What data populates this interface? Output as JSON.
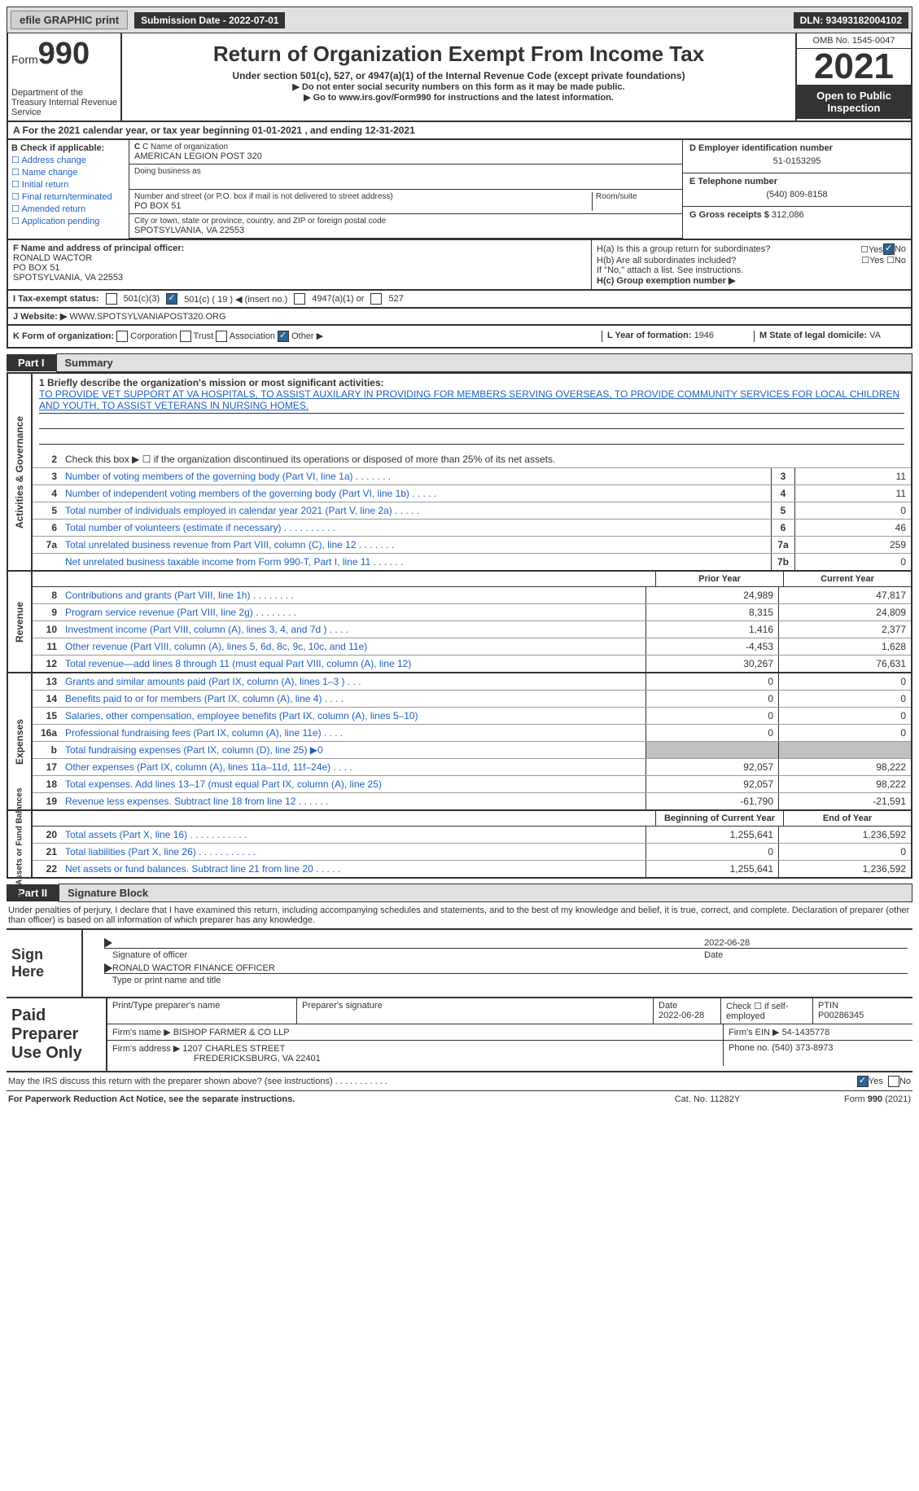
{
  "topbar": {
    "efile": "efile GRAPHIC print",
    "submission": "Submission Date - 2022-07-01",
    "dln": "DLN: 93493182004102"
  },
  "header": {
    "form_label": "Form",
    "form_num": "990",
    "title": "Return of Organization Exempt From Income Tax",
    "sub1": "Under section 501(c), 527, or 4947(a)(1) of the Internal Revenue Code (except private foundations)",
    "sub2": "▶ Do not enter social security numbers on this form as it may be made public.",
    "sub3": "▶ Go to www.irs.gov/Form990 for instructions and the latest information.",
    "dept": "Department of the Treasury Internal Revenue Service",
    "omb": "OMB No. 1545-0047",
    "year": "2021",
    "inspect": "Open to Public Inspection"
  },
  "row_a": "A For the 2021 calendar year, or tax year beginning 01-01-2021    , and ending 12-31-2021",
  "box_b": {
    "label": "B Check if applicable:",
    "opts": [
      "Address change",
      "Name change",
      "Initial return",
      "Final return/terminated",
      "Amended return",
      "Application pending"
    ]
  },
  "box_c": {
    "name_label": "C Name of organization",
    "name": "AMERICAN LEGION POST 320",
    "dba_label": "Doing business as",
    "addr_label": "Number and street (or P.O. box if mail is not delivered to street address)",
    "room_label": "Room/suite",
    "addr": "PO BOX 51",
    "city_label": "City or town, state or province, country, and ZIP or foreign postal code",
    "city": "SPOTSYLVANIA, VA  22553"
  },
  "box_d": {
    "label": "D Employer identification number",
    "value": "51-0153295"
  },
  "box_e": {
    "label": "E Telephone number",
    "value": "(540) 809-8158"
  },
  "box_g": {
    "label": "G Gross receipts $",
    "value": "312,086"
  },
  "box_f": {
    "label": "F Name and address of principal officer:",
    "name": "RONALD WACTOR",
    "addr1": "PO BOX 51",
    "addr2": "SPOTSYLVANIA, VA  22553"
  },
  "box_h": {
    "ha": "H(a) Is this a group return for subordinates?",
    "hb": "H(b) Are all subordinates included?",
    "hb_note": "If \"No,\" attach a list. See instructions.",
    "hc": "H(c) Group exemption number ▶"
  },
  "row_i": {
    "label": "I    Tax-exempt status:",
    "c19": "501(c) ( 19 ) ◀ (insert no.)"
  },
  "row_j": {
    "label": "J   Website: ▶",
    "value": "WWW.SPOTSYLVANIAPOST320.ORG"
  },
  "row_k": {
    "label": "K Form of organization:",
    "l_label": "L Year of formation: ",
    "l_value": "1946",
    "m_label": "M State of legal domicile: ",
    "m_value": "VA"
  },
  "part1": {
    "tab": "Part I",
    "title": "Summary"
  },
  "mission": {
    "label": "1 Briefly describe the organization's mission or most significant activities:",
    "text": "TO PROVIDE VET SUPPORT AT VA HOSPITALS, TO ASSIST AUXILARY IN PROVIDING FOR MEMBERS SERVING OVERSEAS, TO PROVIDE COMMUNITY SERVICES FOR LOCAL CHILDREN AND YOUTH, TO ASSIST VETERANS IN NURSING HOMES."
  },
  "line2": "Check this box ▶ ☐  if the organization discontinued its operations or disposed of more than 25% of its net assets.",
  "ag_lines": [
    {
      "n": "3",
      "d": "Number of voting members of the governing body (Part VI, line 1a)    .    .    .    .    .    .    .",
      "b": "3",
      "v": "11"
    },
    {
      "n": "4",
      "d": "Number of independent voting members of the governing body (Part VI, line 1b)    .    .    .    .    .",
      "b": "4",
      "v": "11"
    },
    {
      "n": "5",
      "d": "Total number of individuals employed in calendar year 2021 (Part V, line 2a)    .    .    .    .    .",
      "b": "5",
      "v": "0"
    },
    {
      "n": "6",
      "d": "Total number of volunteers (estimate if necessary)    .    .    .    .    .    .    .    .    .    .",
      "b": "6",
      "v": "46"
    },
    {
      "n": "7a",
      "d": "Total unrelated business revenue from Part VIII, column (C), line 12    .    .    .    .    .    .    .",
      "b": "7a",
      "v": "259"
    },
    {
      "n": "",
      "d": "Net unrelated business taxable income from Form 990-T, Part I, line 11    .    .    .    .    .    .",
      "b": "7b",
      "v": "0"
    }
  ],
  "col_headers": {
    "py": "Prior Year",
    "cy": "Current Year"
  },
  "rev_lines": [
    {
      "n": "8",
      "d": "Contributions and grants (Part VIII, line 1h)    .    .    .    .    .    .    .    .",
      "py": "24,989",
      "cy": "47,817"
    },
    {
      "n": "9",
      "d": "Program service revenue (Part VIII, line 2g)    .    .    .    .    .    .    .    .",
      "py": "8,315",
      "cy": "24,809"
    },
    {
      "n": "10",
      "d": "Investment income (Part VIII, column (A), lines 3, 4, and 7d )    .    .    .    .",
      "py": "1,416",
      "cy": "2,377"
    },
    {
      "n": "11",
      "d": "Other revenue (Part VIII, column (A), lines 5, 6d, 8c, 9c, 10c, and 11e)",
      "py": "-4,453",
      "cy": "1,628"
    },
    {
      "n": "12",
      "d": "Total revenue—add lines 8 through 11 (must equal Part VIII, column (A), line 12)",
      "py": "30,267",
      "cy": "76,631"
    }
  ],
  "exp_lines": [
    {
      "n": "13",
      "d": "Grants and similar amounts paid (Part IX, column (A), lines 1–3 )    .    .    .",
      "py": "0",
      "cy": "0"
    },
    {
      "n": "14",
      "d": "Benefits paid to or for members (Part IX, column (A), line 4)    .    .    .    .",
      "py": "0",
      "cy": "0"
    },
    {
      "n": "15",
      "d": "Salaries, other compensation, employee benefits (Part IX, column (A), lines 5–10)",
      "py": "0",
      "cy": "0"
    },
    {
      "n": "16a",
      "d": "Professional fundraising fees (Part IX, column (A), line 11e)    .    .    .    .",
      "py": "0",
      "cy": "0"
    },
    {
      "n": "b",
      "d": "Total fundraising expenses (Part IX, column (D), line 25) ▶0",
      "py": "",
      "cy": "",
      "grey": true
    },
    {
      "n": "17",
      "d": "Other expenses (Part IX, column (A), lines 11a–11d, 11f–24e)    .    .    .    .",
      "py": "92,057",
      "cy": "98,222"
    },
    {
      "n": "18",
      "d": "Total expenses. Add lines 13–17 (must equal Part IX, column (A), line 25)",
      "py": "92,057",
      "cy": "98,222"
    },
    {
      "n": "19",
      "d": "Revenue less expenses. Subtract line 18 from line 12    .    .    .    .    .    .",
      "py": "-61,790",
      "cy": "-21,591"
    }
  ],
  "na_headers": {
    "py": "Beginning of Current Year",
    "cy": "End of Year"
  },
  "na_lines": [
    {
      "n": "20",
      "d": "Total assets (Part X, line 16)    .    .    .    .    .    .    .    .    .    .    .",
      "py": "1,255,641",
      "cy": "1,236,592"
    },
    {
      "n": "21",
      "d": "Total liabilities (Part X, line 26)    .    .    .    .    .    .    .    .    .    .    .",
      "py": "0",
      "cy": "0"
    },
    {
      "n": "22",
      "d": "Net assets or fund balances. Subtract line 21 from line 20    .    .    .    .    .",
      "py": "1,255,641",
      "cy": "1,236,592"
    }
  ],
  "part2": {
    "tab": "Part II",
    "title": "Signature Block"
  },
  "penalties": "Under penalties of perjury, I declare that I have examined this return, including accompanying schedules and statements, and to the best of my knowledge and belief, it is true, correct, and complete. Declaration of preparer (other than officer) is based on all information of which preparer has any knowledge.",
  "sign": {
    "label": "Sign Here",
    "sig_off": "Signature of officer",
    "date": "Date",
    "sig_date": "2022-06-28",
    "name": "RONALD WACTOR  FINANCE OFFICER",
    "type_label": "Type or print name and title"
  },
  "prep": {
    "label": "Paid Preparer Use Only",
    "r1": {
      "a": "Print/Type preparer's name",
      "b": "Preparer's signature",
      "c": "Date",
      "cd": "2022-06-28",
      "d": "Check ☐ if self-employed",
      "e": "PTIN",
      "ev": "P00286345"
    },
    "r2": {
      "a": "Firm's name     ▶",
      "av": "BISHOP FARMER & CO LLP",
      "b": "Firm's EIN ▶",
      "bv": "54-1435778"
    },
    "r3": {
      "a": "Firm's address ▶",
      "av": "1207 CHARLES STREET",
      "a2": "FREDERICKSBURG, VA  22401",
      "b": "Phone no.",
      "bv": "(540) 373-8973"
    }
  },
  "discuss": "May the IRS discuss this return with the preparer shown above? (see instructions)    .    .    .    .    .    .    .    .    .    .    .",
  "footer": {
    "pra": "For Paperwork Reduction Act Notice, see the separate instructions.",
    "cat": "Cat. No. 11282Y",
    "form": "Form 990 (2021)"
  },
  "side_labels": {
    "ag": "Activities & Governance",
    "rev": "Revenue",
    "exp": "Expenses",
    "na": "Net Assets or Fund Balances"
  }
}
